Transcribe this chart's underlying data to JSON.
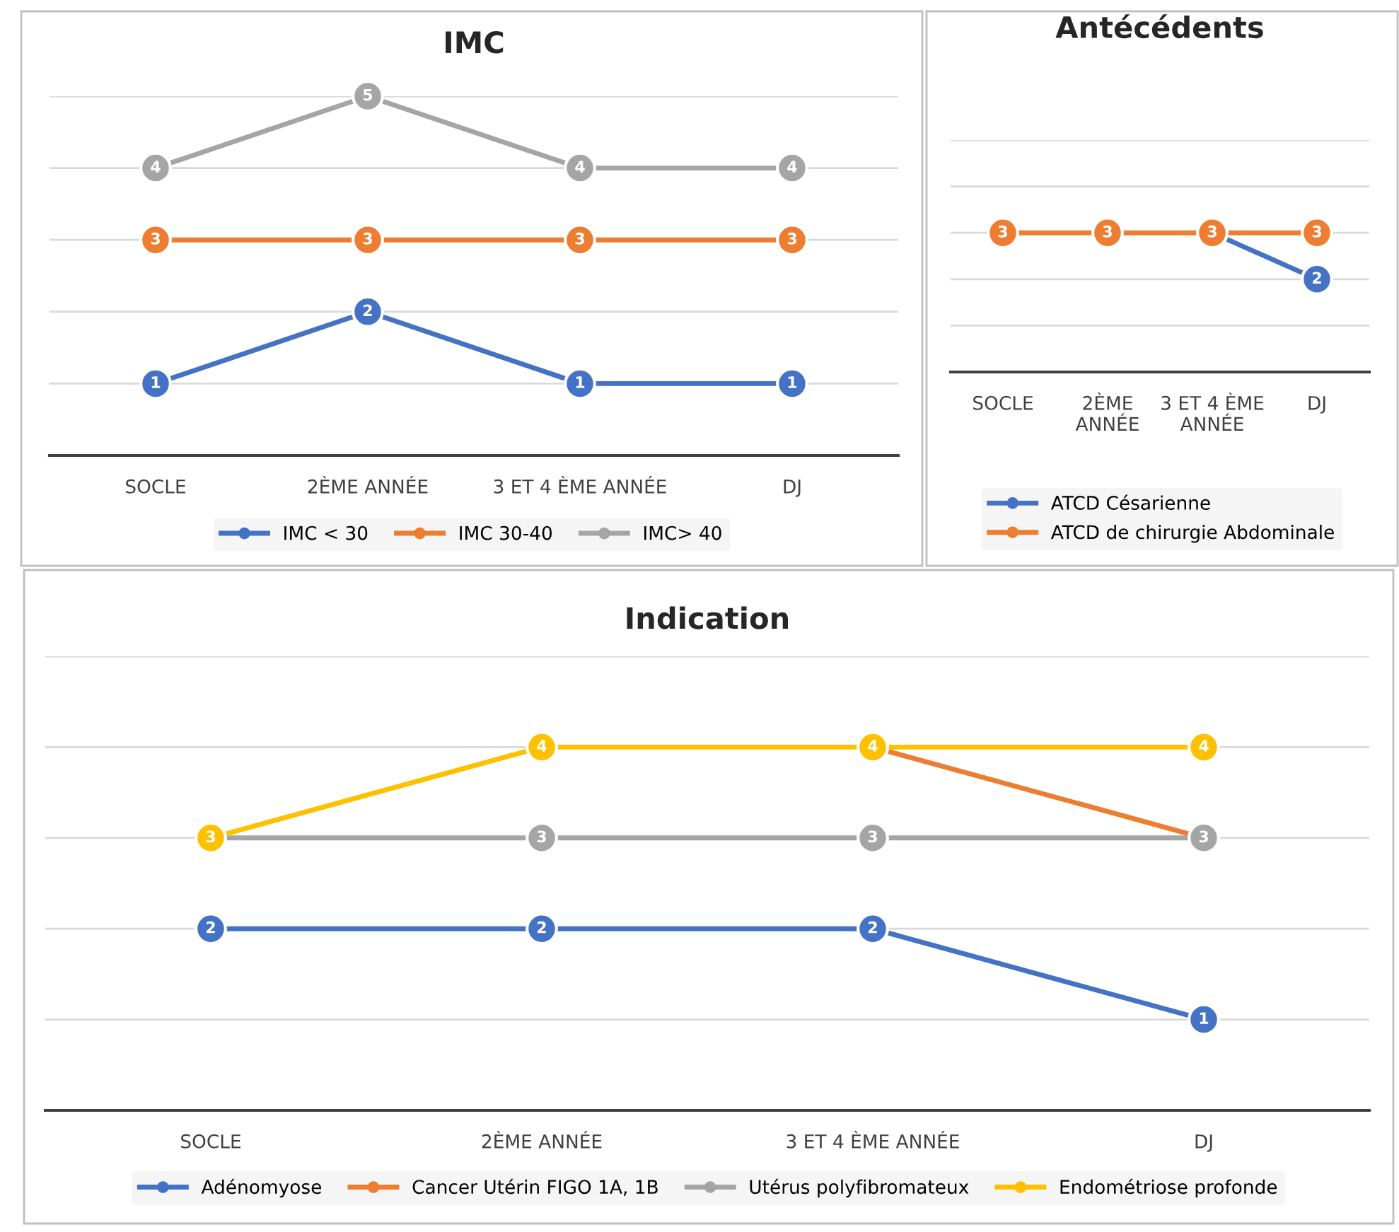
{
  "chart_data": [
    {
      "type": "line",
      "title": "IMC",
      "categories": [
        "SOCLE",
        "2ÈME ANNÉE",
        "3 ET 4 ÈME ANNÉE",
        "DJ"
      ],
      "ylim": [
        0,
        5
      ],
      "yticks": [
        {
          "value": 1,
          "label": null
        },
        {
          "value": 2,
          "label": null
        },
        {
          "value": 3,
          "label": null
        },
        {
          "value": 4,
          "label": null
        },
        {
          "value": 5,
          "label": null
        }
      ],
      "tick_labels": "x",
      "grid": "y",
      "legend": "bottom",
      "marker": "circle",
      "line_style": "solid",
      "data_labels": true,
      "series": [
        {
          "name": "IMC < 30",
          "color": "#4472c4",
          "values": [
            1,
            2,
            1,
            1
          ]
        },
        {
          "name": "IMC 30-40",
          "color": "#ed7d31",
          "values": [
            3,
            3,
            3,
            3
          ]
        },
        {
          "name": "IMC> 40",
          "color": "#a5a5a5",
          "values": [
            4,
            5,
            4,
            4
          ]
        }
      ]
    },
    {
      "type": "line",
      "title": "Antécédents",
      "categories": [
        "SOCLE",
        "2ÈME ANNÉE",
        "3 ET 4 ÈME ANNÉE",
        "DJ"
      ],
      "ylim": [
        0,
        5
      ],
      "yticks": [
        {
          "value": 1,
          "label": null
        },
        {
          "value": 2,
          "label": null
        },
        {
          "value": 3,
          "label": null
        },
        {
          "value": 4,
          "label": null
        },
        {
          "value": 5,
          "label": null
        }
      ],
      "tick_labels": "x",
      "grid": "y",
      "legend": "bottom",
      "marker": "circle",
      "line_style": "solid",
      "series": [
        {
          "name": "ATCD Césarienne",
          "color": "#4472c4",
          "values": [
            null,
            null,
            3,
            2
          ],
          "value_labels": [
            null,
            null,
            null,
            "2"
          ]
        },
        {
          "name": "ATCD de chirurgie Abdominale",
          "color": "#ed7d31",
          "values": [
            3,
            3,
            3,
            3
          ],
          "value_labels": [
            "3",
            "3",
            "3",
            "3"
          ]
        }
      ]
    },
    {
      "type": "line",
      "title": "Indication",
      "categories": [
        "SOCLE",
        "2ÈME ANNÉE",
        "3 ET 4 ÈME ANNÉE",
        "DJ"
      ],
      "ylim": [
        0,
        5
      ],
      "yticks": [
        {
          "value": 1,
          "label": null
        },
        {
          "value": 2,
          "label": null
        },
        {
          "value": 3,
          "label": null
        },
        {
          "value": 4,
          "label": null
        },
        {
          "value": 5,
          "label": null
        }
      ],
      "tick_labels": "x",
      "grid": "y",
      "legend": "bottom",
      "marker": "circle",
      "line_style": "solid",
      "series": [
        {
          "name": "Adénomyose",
          "color": "#4472c4",
          "values": [
            2,
            2,
            2,
            1
          ],
          "value_labels": [
            "2",
            "2",
            "2",
            "1"
          ]
        },
        {
          "name": "Cancer Utérin FIGO 1A, 1B",
          "color": "#ed7d31",
          "values": [
            null,
            null,
            4,
            3
          ],
          "value_labels": [
            null,
            null,
            null,
            null
          ]
        },
        {
          "name": "Utérus polyfibromateux",
          "color": "#a5a5a5",
          "values": [
            3,
            3,
            3,
            3
          ],
          "value_labels": [
            null,
            "3",
            "3",
            "3"
          ]
        },
        {
          "name": "Endométriose profonde",
          "color": "#ffc000",
          "values": [
            3,
            4,
            4,
            4
          ],
          "value_labels": [
            "3",
            "4",
            "4",
            "4"
          ]
        }
      ]
    }
  ]
}
